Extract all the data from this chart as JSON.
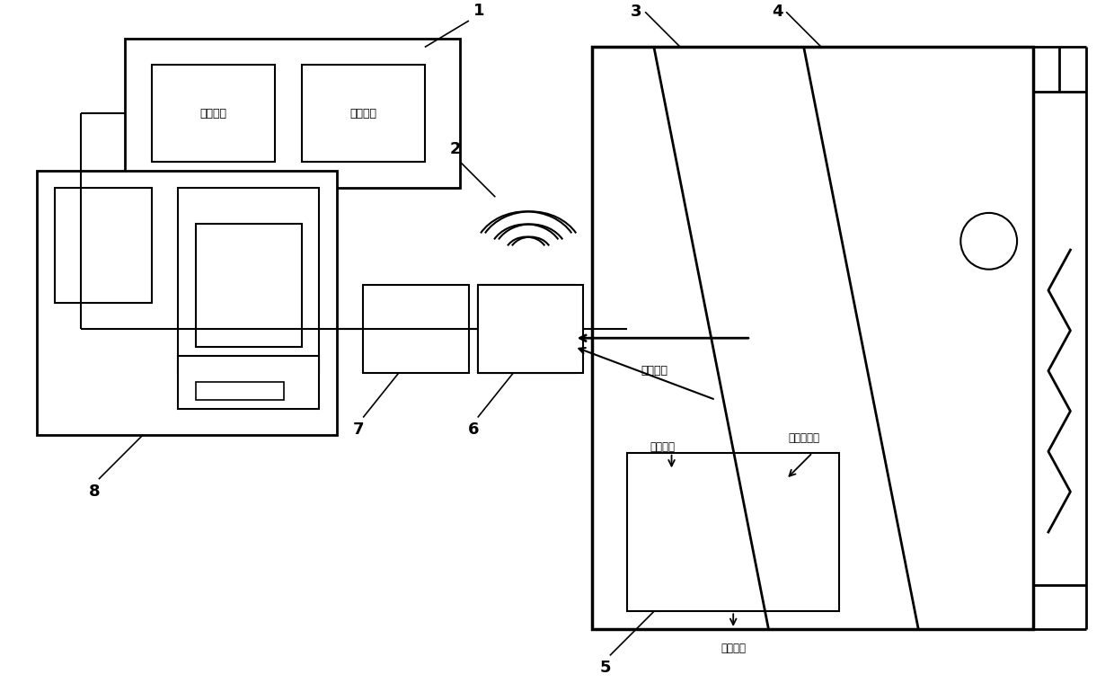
{
  "bg_color": "#ffffff",
  "line_color": "#000000",
  "chinese": {
    "data_calc": "数据计算",
    "data_storage": "数据存储",
    "wireless": "无线传输",
    "indoor_temp": "室内温度",
    "heater_temp": "电暑气温度",
    "outdoor_temp": "室外温度"
  },
  "figsize": [
    12.4,
    7.7
  ],
  "dpi": 100
}
